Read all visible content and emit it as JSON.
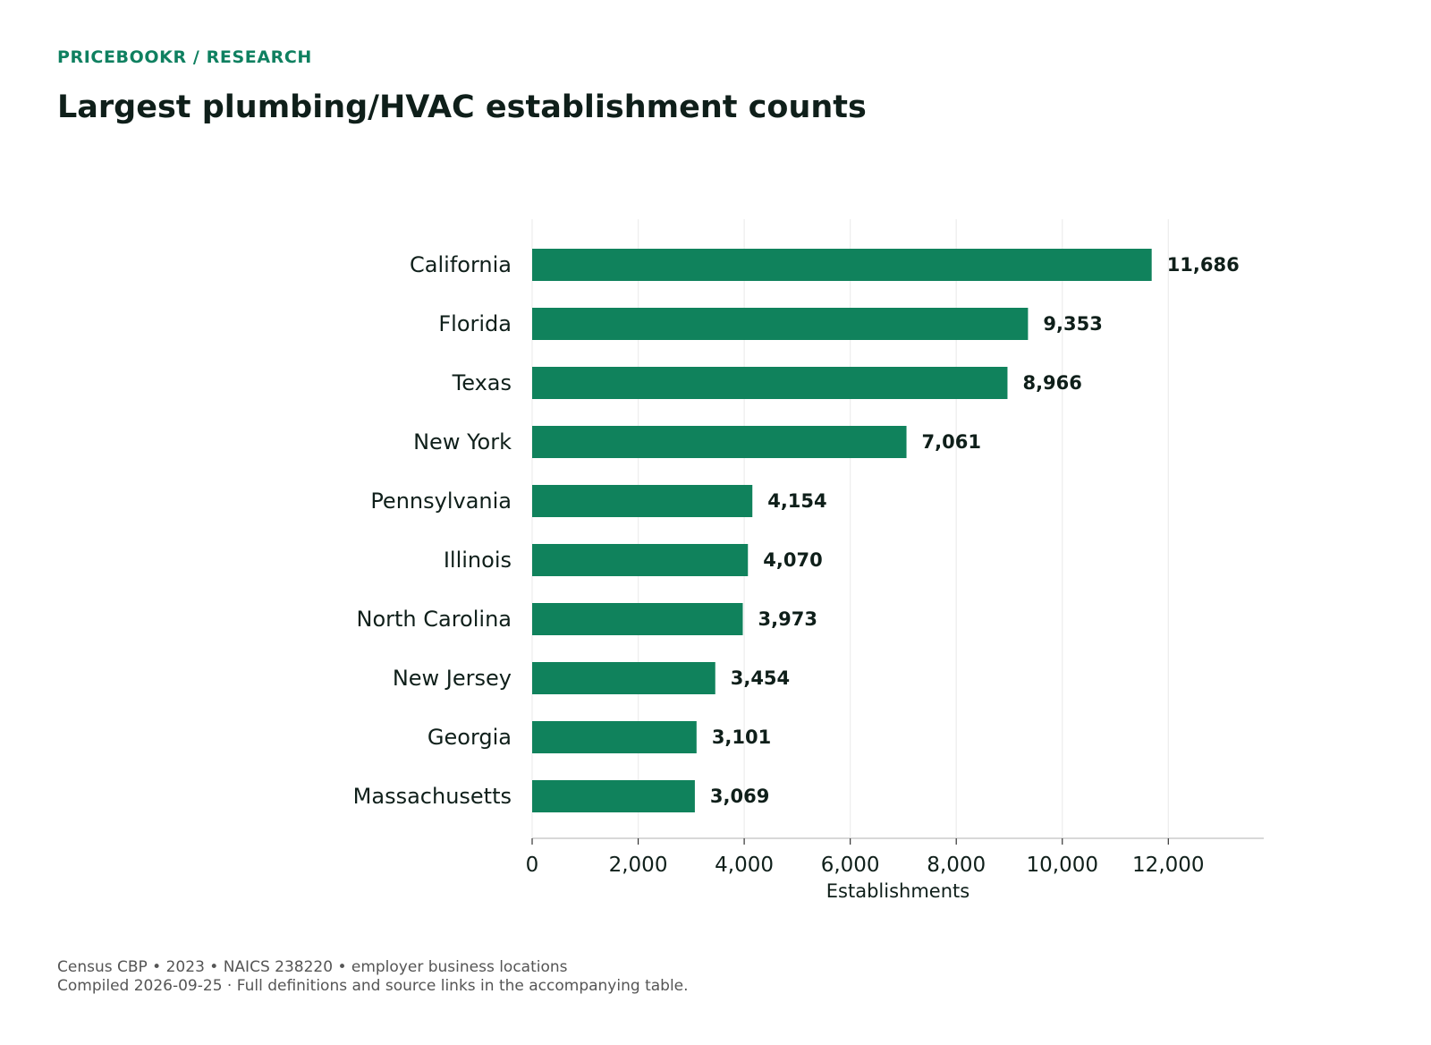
{
  "header": {
    "eyebrow": "PRICEBOOKR / RESEARCH",
    "title": "Largest plumbing/HVAC establishment counts"
  },
  "footer": {
    "line1": "Census CBP • 2023 • NAICS 238220 • employer business locations",
    "line2": "Compiled 2026-09-25 · Full definitions and source links in the accompanying table."
  },
  "colors": {
    "bar": "#10825c",
    "grid": "#eeeeee",
    "axis": "#cccccc",
    "accent": "#0f8060",
    "text": "#0f1f1a"
  },
  "chart_data": {
    "type": "bar",
    "orientation": "horizontal",
    "title": "Largest plumbing/HVAC establishment counts",
    "xlabel": "Establishments",
    "ylabel": "",
    "categories": [
      "California",
      "Florida",
      "Texas",
      "New York",
      "Pennsylvania",
      "Illinois",
      "North Carolina",
      "New Jersey",
      "Georgia",
      "Massachusetts"
    ],
    "values": [
      11686,
      9353,
      8966,
      7061,
      4154,
      4070,
      3973,
      3454,
      3101,
      3069
    ],
    "value_labels": [
      "11,686",
      "9,353",
      "8,966",
      "7,061",
      "4,154",
      "4,070",
      "3,973",
      "3,454",
      "3,101",
      "3,069"
    ],
    "xticks": [
      0,
      2000,
      4000,
      6000,
      8000,
      10000,
      12000
    ],
    "xtick_labels": [
      "0",
      "2,000",
      "4,000",
      "6,000",
      "8,000",
      "10,000",
      "12,000"
    ],
    "xlim": [
      0,
      13800
    ],
    "grid": "vertical",
    "legend": "none"
  }
}
